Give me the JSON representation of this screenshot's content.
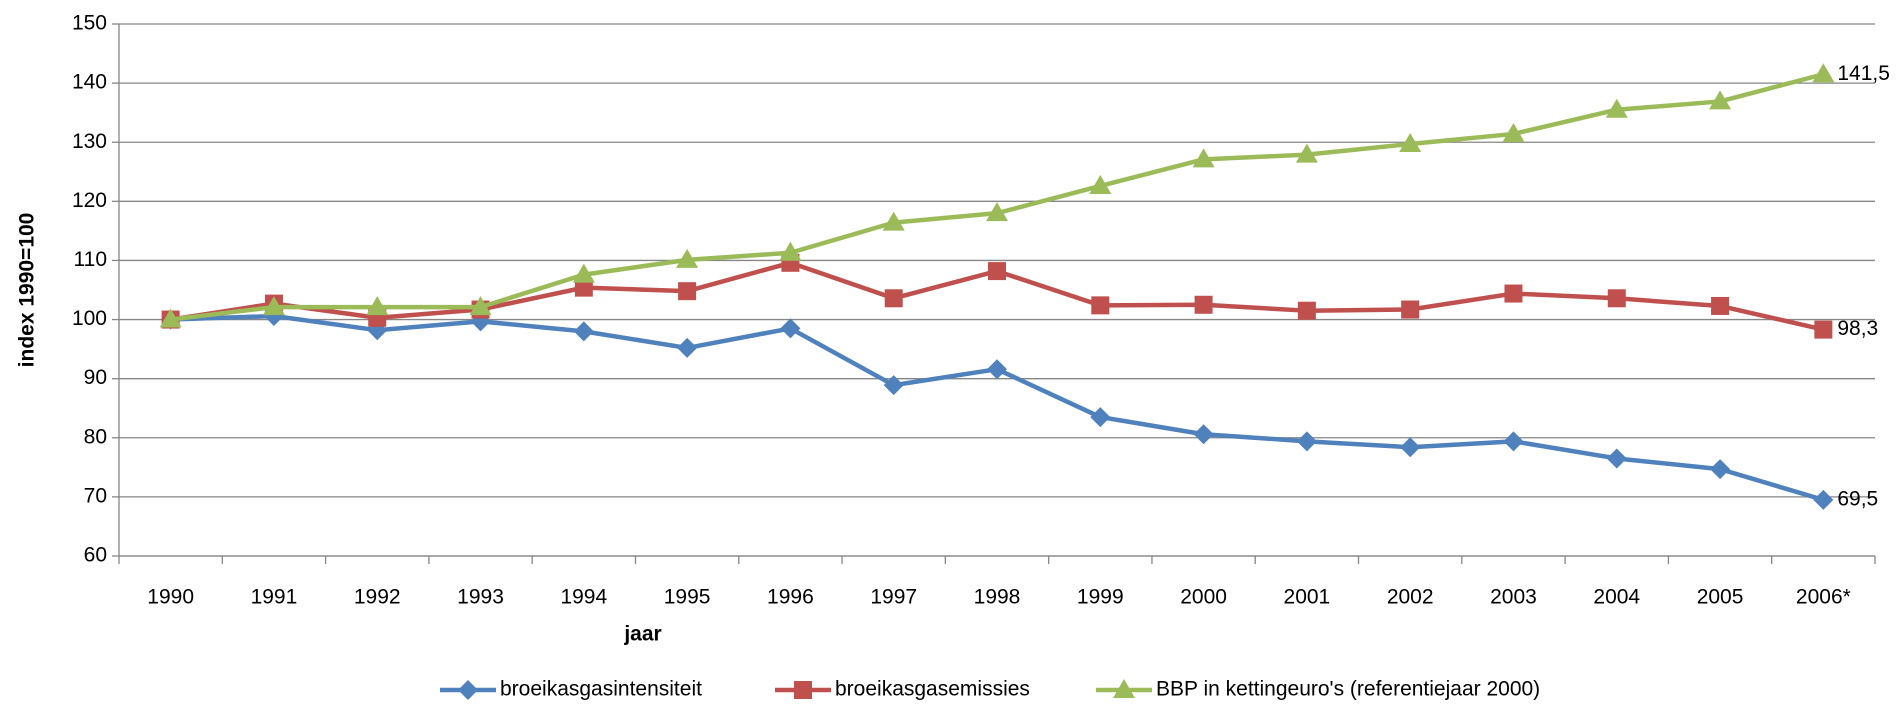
{
  "chart_data": {
    "type": "line",
    "x_label": "jaar",
    "y_label": "index 1990=100",
    "categories": [
      "1990",
      "1991",
      "1992",
      "1993",
      "1994",
      "1995",
      "1996",
      "1997",
      "1998",
      "1999",
      "2000",
      "2001",
      "2002",
      "2003",
      "2004",
      "2005",
      "2006*"
    ],
    "ylim": [
      60,
      150
    ],
    "yticks": [
      60,
      70,
      80,
      90,
      100,
      110,
      120,
      130,
      140,
      150
    ],
    "grid": true,
    "legend": "bottom",
    "series": [
      {
        "name": "broeikasgasintensiteit",
        "color": "#4f81bd",
        "marker": "diamond",
        "values": [
          100,
          100.6,
          98.2,
          99.7,
          98,
          95.2,
          98.5,
          88.9,
          91.6,
          83.5,
          80.6,
          79.4,
          78.4,
          79.4,
          76.5,
          74.7,
          69.5
        ],
        "value_labels": [
          null,
          null,
          null,
          null,
          null,
          null,
          null,
          null,
          null,
          null,
          null,
          null,
          null,
          null,
          null,
          null,
          "69,5"
        ]
      },
      {
        "name": "broeikasgasemissies",
        "color": "#c0504d",
        "marker": "square",
        "values": [
          100,
          102.7,
          100.3,
          101.7,
          105.4,
          104.8,
          109.6,
          103.6,
          108.2,
          102.4,
          102.5,
          101.5,
          101.7,
          104.4,
          103.6,
          102.3,
          98.3
        ],
        "value_labels": [
          null,
          null,
          null,
          null,
          null,
          null,
          null,
          null,
          null,
          null,
          null,
          null,
          null,
          null,
          null,
          null,
          "98,3"
        ]
      },
      {
        "name": "BBP in kettingeuro's (referentiejaar 2000)",
        "color": "#9bbb59",
        "marker": "triangle",
        "values": [
          100,
          102.1,
          102.1,
          102.1,
          107.6,
          110.1,
          111.3,
          116.4,
          118.0,
          122.6,
          127.1,
          127.9,
          129.7,
          131.4,
          135.5,
          136.9,
          141.5
        ],
        "value_labels": [
          null,
          null,
          null,
          null,
          null,
          null,
          null,
          null,
          null,
          null,
          null,
          null,
          null,
          null,
          null,
          null,
          "141,5"
        ]
      }
    ]
  }
}
